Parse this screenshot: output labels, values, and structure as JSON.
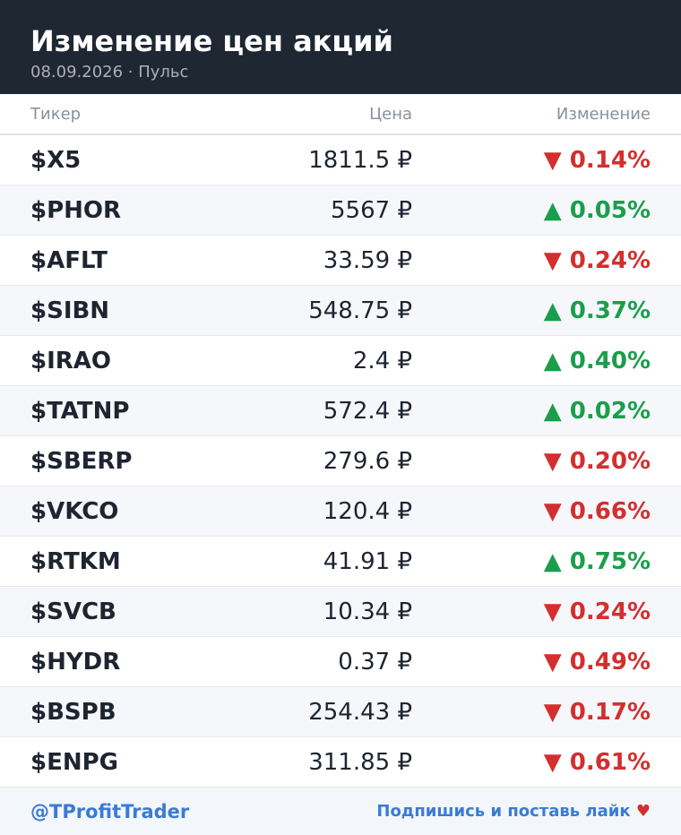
{
  "header": {
    "title": "Изменение цен акций",
    "subtitle": "08.09.2026 · Пульс"
  },
  "table": {
    "columns": [
      "Тикер",
      "Цена",
      "Изменение"
    ],
    "rows": [
      {
        "ticker": "$X5",
        "price": "1811.5 ₽",
        "arrow": "▼",
        "change": "0.14%"
      },
      {
        "ticker": "$PHOR",
        "price": "5567 ₽",
        "arrow": "▲",
        "change": "0.05%"
      },
      {
        "ticker": "$AFLT",
        "price": "33.59 ₽",
        "arrow": "▼",
        "change": "0.24%"
      },
      {
        "ticker": "$SIBN",
        "price": "548.75 ₽",
        "arrow": "▲",
        "change": "0.37%"
      },
      {
        "ticker": "$IRAO",
        "price": "2.4 ₽",
        "arrow": "▲",
        "change": "0.40%"
      },
      {
        "ticker": "$TATNP",
        "price": "572.4 ₽",
        "arrow": "▲",
        "change": "0.02%"
      },
      {
        "ticker": "$SBERP",
        "price": "279.6 ₽",
        "arrow": "▼",
        "change": "0.20%"
      },
      {
        "ticker": "$VKCO",
        "price": "120.4 ₽",
        "arrow": "▼",
        "change": "0.66%"
      },
      {
        "ticker": "$RTKM",
        "price": "41.91 ₽",
        "arrow": "▲",
        "change": "0.75%"
      },
      {
        "ticker": "$SVCB",
        "price": "10.34 ₽",
        "arrow": "▼",
        "change": "0.24%"
      },
      {
        "ticker": "$HYDR",
        "price": "0.37 ₽",
        "arrow": "▼",
        "change": "0.49%"
      },
      {
        "ticker": "$BSPB",
        "price": "254.43 ₽",
        "arrow": "▼",
        "change": "0.17%"
      },
      {
        "ticker": "$ENPG",
        "price": "311.85 ₽",
        "arrow": "▼",
        "change": "0.61%"
      }
    ]
  },
  "footer": {
    "handle": "@TProfitTrader",
    "cta": "Подпишись и поставь лайк",
    "heart": "♥"
  }
}
